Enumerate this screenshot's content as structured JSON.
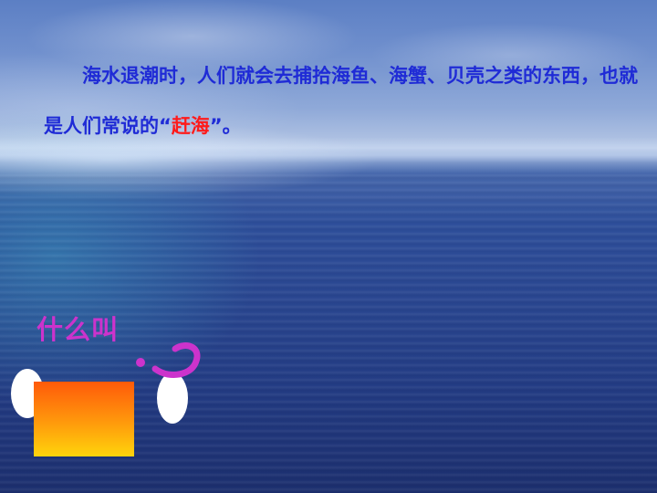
{
  "slide": {
    "paragraph": {
      "before": "海水退潮时，人们就会去捕拾海鱼、海蟹、贝壳之类的东西，也就是人们常说的“",
      "highlight": "赶海",
      "after": "”。"
    },
    "question_text": "什么叫"
  },
  "colors": {
    "paragraph_text": "#1f2bd6",
    "highlight_text": "#ff1a1a",
    "question_text": "#cc33cc",
    "question_mark": "#cc33cc",
    "box_top": "#ff5a0a",
    "box_bottom": "#ffd40c"
  },
  "icons": {
    "question_mark": "question-mark-icon"
  }
}
